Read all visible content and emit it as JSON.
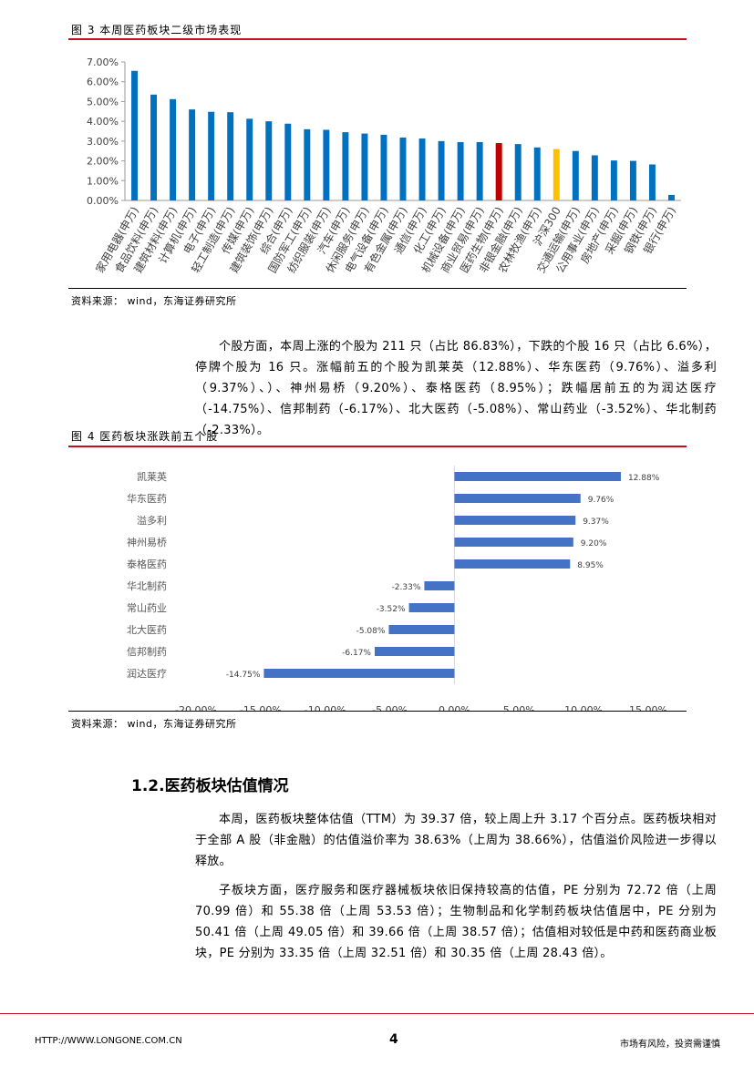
{
  "fig3": {
    "title": "图 3  本周医药板块二级市场表现",
    "source": "资料来源：  wind，东海证券研究所"
  },
  "fig4": {
    "title": "图 4  医药板块涨跌前五个股",
    "source": "资料来源：  wind，东海证券研究所"
  },
  "para1": "个股方面，本周上涨的个股为 211 只（占比 86.83%），下跌的个股 16 只（占比 6.6%），停牌个股为 16 只。涨幅前五的个股为凯莱英（12.88%）、华东医药（9.76%）、溢多利（9.37%）、）、神州易桥（9.20%）、泰格医药（8.95%）；跌幅居前五的为润达医疗（-14.75%）、信邦制药（-6.17%）、北大医药（-5.08%）、常山药业（-3.52%）、华北制药（-2.33%）。",
  "section_title": "1.2.医药板块估值情况",
  "para2": "本周，医药板块整体估值（TTM）为 39.37 倍，较上周上升 3.17 个百分点。医药板块相对于全部 A 股（非金融）的估值溢价率为 38.63%（上周为 38.66%），估值溢价风险进一步得以释放。",
  "para3": "子板块方面，医疗服务和医疗器械板块依旧保持较高的估值，PE 分别为 72.72 倍（上周 70.99 倍）和 55.38 倍（上周 53.53 倍）；生物制品和化学制药板块估值居中，PE 分别为 50.41 倍（上周 49.05 倍）和 39.66 倍（上周 38.57 倍）；估值相对较低是中药和医药商业板块，PE 分别为 33.35 倍（上周 32.51 倍）和 30.35 倍（上周 28.43 倍）。",
  "footer": {
    "url": "HTTP://WWW.LONGONE.COM.CN",
    "page": "4",
    "disclaimer": "市场有风险，投资需谨慎"
  },
  "chart_data": [
    {
      "type": "bar",
      "categories": [
        "家用电器(申万)",
        "食品饮料(申万)",
        "建筑材料(申万)",
        "计算机(申万)",
        "电子(申万)",
        "轻工制造(申万)",
        "传媒(申万)",
        "建筑装饰(申万)",
        "综合(申万)",
        "国防军工(申万)",
        "纺织服装(申万)",
        "汽车(申万)",
        "休闲服务(申万)",
        "电气设备(申万)",
        "有色金属(申万)",
        "通信(申万)",
        "化工(申万)",
        "机械设备(申万)",
        "商业贸易(申万)",
        "医药生物(申万)",
        "非银金融(申万)",
        "农林牧渔(申万)",
        "沪深300",
        "交通运输(申万)",
        "公用事业(申万)",
        "房地产(申万)",
        "采掘(申万)",
        "钢铁(申万)",
        "银行(申万)"
      ],
      "values": [
        6.55,
        5.35,
        5.12,
        4.6,
        4.48,
        4.46,
        4.13,
        4.0,
        3.88,
        3.6,
        3.57,
        3.45,
        3.38,
        3.32,
        3.18,
        3.13,
        3.0,
        2.95,
        2.95,
        2.9,
        2.85,
        2.68,
        2.6,
        2.5,
        2.28,
        2.02,
        2.0,
        1.82,
        0.28
      ],
      "highlight": {
        "医药生物(申万)": "#c00000",
        "沪深300": "#ffc000"
      },
      "bar_color": "#0070c0",
      "y_ticks": [
        "0.00%",
        "1.00%",
        "2.00%",
        "3.00%",
        "4.00%",
        "5.00%",
        "6.00%",
        "7.00%"
      ],
      "ylim": [
        0,
        7
      ]
    },
    {
      "type": "bar",
      "orientation": "horizontal",
      "categories": [
        "凯莱英",
        "华东医药",
        "溢多利",
        "神州易桥",
        "泰格医药",
        "华北制药",
        "常山药业",
        "北大医药",
        "信邦制药",
        "润达医疗"
      ],
      "values": [
        12.88,
        9.76,
        9.37,
        9.2,
        8.95,
        -2.33,
        -3.52,
        -5.08,
        -6.17,
        -14.75
      ],
      "labels": [
        "12.88%",
        "9.76%",
        "9.37%",
        "9.20%",
        "8.95%",
        "-2.33%",
        "-3.52%",
        "-5.08%",
        "-6.17%",
        "-14.75%"
      ],
      "bar_color": "#4472c4",
      "x_ticks": [
        "-20.00%",
        "-15.00%",
        "-10.00%",
        "-5.00%",
        "0.00%",
        "5.00%",
        "10.00%",
        "15.00%"
      ],
      "xlim": [
        -20,
        15
      ]
    }
  ]
}
